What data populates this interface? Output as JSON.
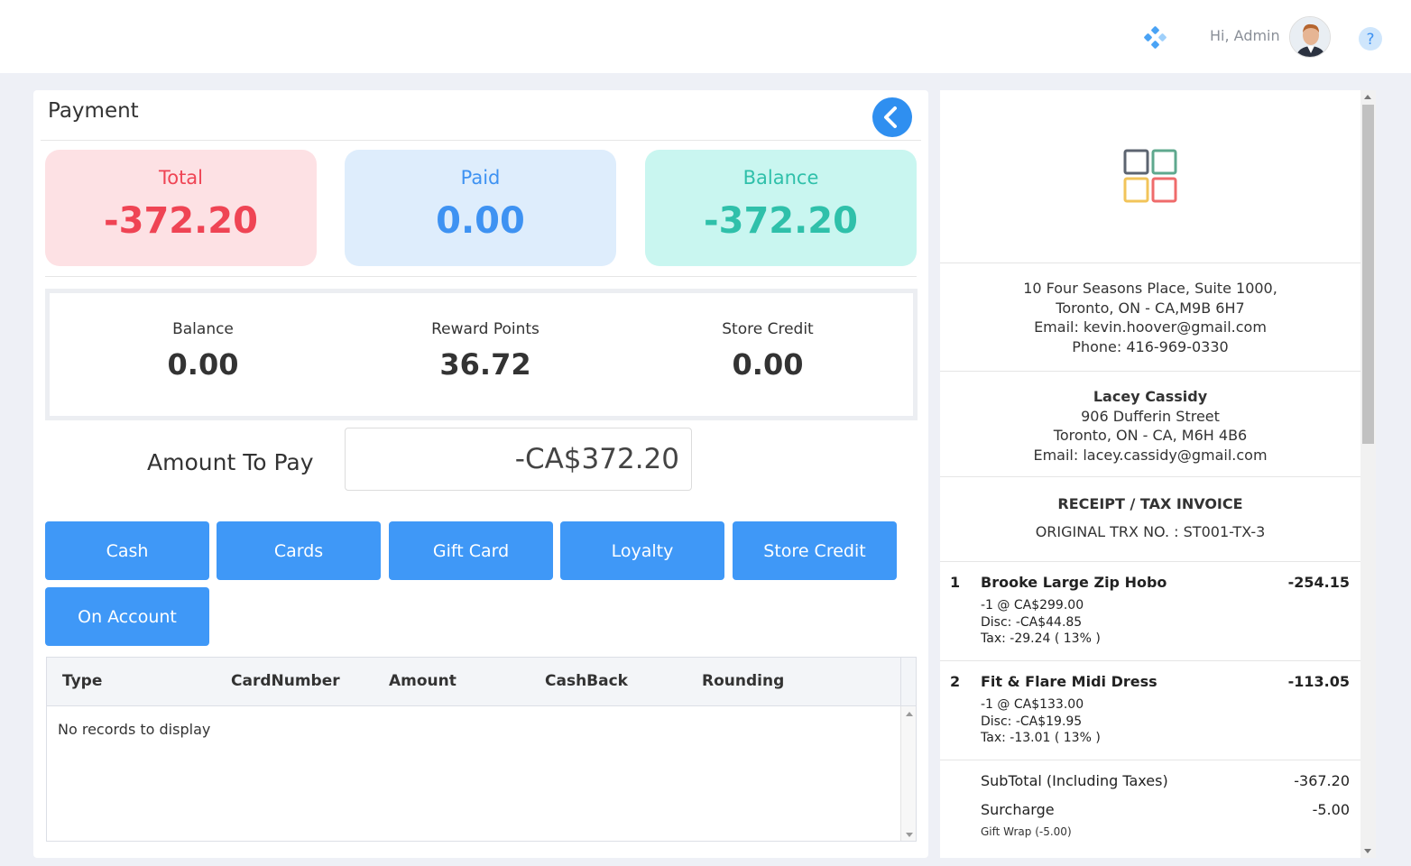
{
  "header": {
    "greeting": "Hi, Admin",
    "grid_icon": "apps-grid-icon",
    "help_icon": "help-question-icon"
  },
  "payment": {
    "title": "Payment",
    "summary": {
      "total_label": "Total",
      "total_value": "-372.20",
      "paid_label": "Paid",
      "paid_value": "0.00",
      "balance_label": "Balance",
      "balance_value": "-372.20"
    },
    "customer": {
      "balance_label": "Balance",
      "balance_value": "0.00",
      "reward_label": "Reward Points",
      "reward_value": "36.72",
      "credit_label": "Store Credit",
      "credit_value": "0.00"
    },
    "amount_label": "Amount To Pay",
    "amount_value": "-CA$372.20",
    "buttons": [
      "Cash",
      "Cards",
      "Gift Card",
      "Loyalty",
      "Store Credit",
      "On Account"
    ],
    "grid": {
      "columns": [
        "Type",
        "CardNumber",
        "Amount",
        "CashBack",
        "Rounding"
      ],
      "empty_text": "No records to display"
    }
  },
  "receipt": {
    "store_address": [
      "10 Four Seasons Place, Suite 1000,",
      "Toronto, ON - CA,M9B 6H7",
      "Email: kevin.hoover@gmail.com",
      "Phone: 416-969-0330"
    ],
    "customer_name": "Lacey Cassidy",
    "customer_address": [
      "906 Dufferin Street",
      "Toronto, ON - CA, M6H 4B6",
      "Email: lacey.cassidy@gmail.com"
    ],
    "title": "RECEIPT / TAX INVOICE",
    "original_trx": "ORIGINAL TRX NO. : ST001-TX-3",
    "items": [
      {
        "num": "1",
        "name": "Brooke Large Zip Hobo",
        "amount": "-254.15",
        "qty_price": "-1 @ CA$299.00",
        "disc": "Disc: -CA$44.85",
        "tax": "Tax: -29.24 ( 13% )"
      },
      {
        "num": "2",
        "name": "Fit & Flare Midi Dress",
        "amount": "-113.05",
        "qty_price": "-1 @ CA$133.00",
        "disc": "Disc: -CA$19.95",
        "tax": "Tax: -13.01 ( 13% )"
      }
    ],
    "subtotal_label": "SubTotal (Including Taxes)",
    "subtotal_value": "-367.20",
    "surcharge_label": "Surcharge",
    "surcharge_value": "-5.00",
    "giftwrap": "Gift Wrap (-5.00)"
  },
  "colors": {
    "primary_button": "#3f98f7",
    "total": "#ef4454",
    "paid": "#3e92f2",
    "balance": "#2fc0aa"
  }
}
